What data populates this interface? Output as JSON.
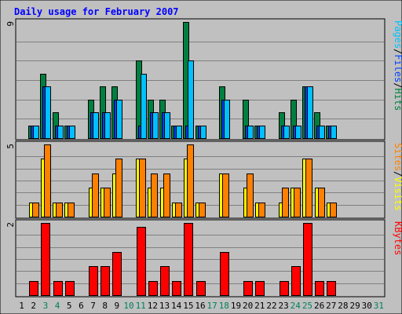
{
  "chart_data": {
    "type": "bar",
    "title": "Daily usage for February 2007",
    "colors": {
      "frame_bg": "#c0c0c0",
      "title": "#0000ff",
      "grid": "#808080",
      "hits": "#008040",
      "files": "#0040ff",
      "pages": "#00c0ff",
      "visits": "#ffff00",
      "sites": "#ff8000",
      "kbytes": "#ff0000",
      "label_default": "#000000",
      "label_weekend": "#00805c"
    },
    "days": [
      "1",
      "2",
      "3",
      "4",
      "5",
      "6",
      "7",
      "8",
      "9",
      "10",
      "11",
      "12",
      "13",
      "14",
      "15",
      "16",
      "17",
      "18",
      "19",
      "20",
      "21",
      "22",
      "23",
      "24",
      "25",
      "26",
      "27",
      "28",
      "29",
      "30",
      "31"
    ],
    "weekend_days": [
      "3",
      "4",
      "10",
      "11",
      "17",
      "18",
      "24",
      "25",
      "31"
    ],
    "top_panel": {
      "ymax_label": "9",
      "ymax": 9,
      "legend": [
        "Pages",
        "Files",
        "Hits"
      ],
      "series": [
        {
          "name": "Hits",
          "values": [
            0,
            1,
            5,
            2,
            1,
            0,
            3,
            4,
            4,
            0,
            6,
            3,
            3,
            1,
            9,
            1,
            0,
            4,
            0,
            3,
            1,
            0,
            2,
            3,
            4,
            2,
            1,
            0,
            0,
            0,
            0
          ]
        },
        {
          "name": "Files",
          "values": [
            0,
            1,
            4,
            1,
            1,
            0,
            2,
            2,
            3,
            0,
            1,
            2,
            2,
            1,
            1,
            1,
            0,
            3,
            0,
            1,
            1,
            0,
            1,
            1,
            4,
            1,
            1,
            0,
            0,
            0,
            0
          ]
        },
        {
          "name": "Pages",
          "values": [
            0,
            1,
            4,
            1,
            1,
            0,
            2,
            2,
            3,
            0,
            5,
            2,
            2,
            1,
            6,
            1,
            0,
            3,
            0,
            1,
            1,
            0,
            1,
            1,
            4,
            1,
            1,
            0,
            0,
            0,
            0
          ]
        }
      ]
    },
    "middle_panel": {
      "ymax_label": "5",
      "ymax": 5,
      "legend": [
        "Sites",
        "Visits"
      ],
      "series": [
        {
          "name": "Visits",
          "values": [
            0,
            1,
            4,
            1,
            1,
            0,
            2,
            2,
            3,
            0,
            4,
            2,
            2,
            1,
            4,
            1,
            0,
            3,
            0,
            2,
            1,
            0,
            1,
            2,
            4,
            2,
            1,
            0,
            0,
            0,
            0
          ]
        },
        {
          "name": "Sites",
          "values": [
            0,
            1,
            5,
            1,
            1,
            0,
            3,
            2,
            4,
            0,
            4,
            3,
            3,
            1,
            5,
            1,
            0,
            3,
            0,
            3,
            1,
            0,
            2,
            2,
            4,
            2,
            1,
            0,
            0,
            0,
            0
          ]
        }
      ]
    },
    "bottom_panel": {
      "ymax_label": "2",
      "ymax": 2,
      "legend": [
        "KBytes"
      ],
      "series": [
        {
          "name": "KBytes",
          "values": [
            0,
            0.4,
            2,
            0.4,
            0.4,
            0,
            0.8,
            0.8,
            1.2,
            0,
            1.9,
            0.4,
            0.8,
            0.4,
            2,
            0.4,
            0,
            1.2,
            0,
            0.4,
            0.4,
            0,
            0.4,
            0.8,
            2,
            0.4,
            0.4,
            0,
            0,
            0,
            0
          ]
        }
      ]
    }
  }
}
